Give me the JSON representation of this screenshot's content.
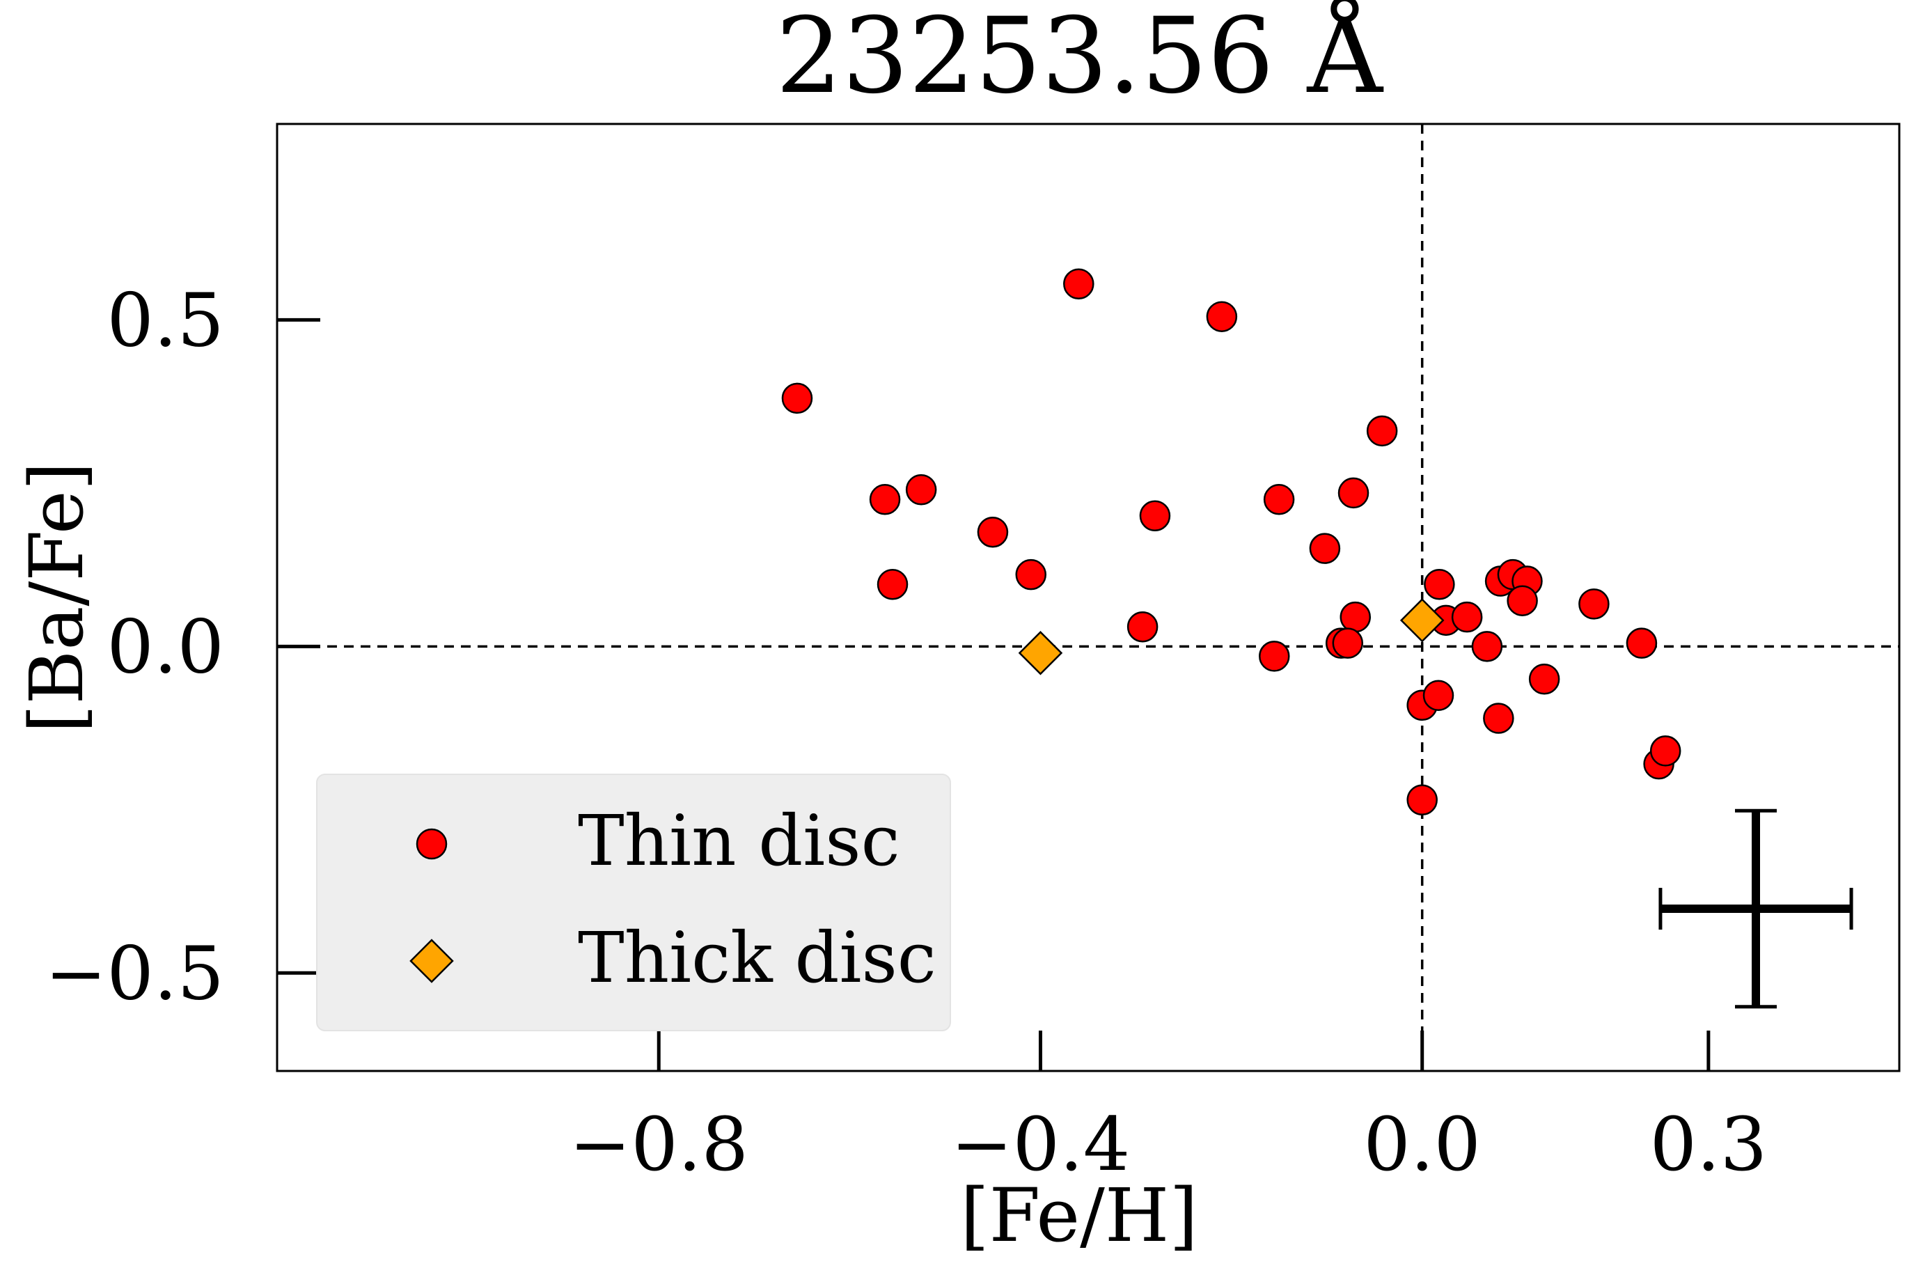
{
  "chart_data": {
    "type": "scatter",
    "title": "23253.56 Å",
    "xlabel": "[Fe/H]",
    "ylabel": "[Ba/Fe]",
    "xlim": [
      -1.2,
      0.5
    ],
    "ylim": [
      -0.65,
      0.8
    ],
    "xticks": [
      -0.8,
      -0.4,
      0.0,
      0.3
    ],
    "xtick_labels": [
      "−0.8",
      "−0.4",
      "0.0",
      "0.3"
    ],
    "yticks": [
      0.5,
      0.0,
      -0.5
    ],
    "ytick_labels": [
      "0.5",
      "0.0",
      "−0.5"
    ],
    "grid": false,
    "reference_lines": {
      "x": 0.0,
      "y": 0.0,
      "style": "dashed"
    },
    "legend_position": "lower-left",
    "series": [
      {
        "name": "Thin disc",
        "marker": "circle",
        "color": "#ff0000",
        "points": [
          [
            -0.655,
            0.38
          ],
          [
            -0.563,
            0.225
          ],
          [
            -0.525,
            0.24
          ],
          [
            -0.555,
            0.095
          ],
          [
            -0.45,
            0.175
          ],
          [
            -0.41,
            0.11
          ],
          [
            -0.36,
            0.555
          ],
          [
            -0.28,
            0.2
          ],
          [
            -0.293,
            0.03
          ],
          [
            -0.21,
            0.505
          ],
          [
            -0.15,
            0.225
          ],
          [
            -0.155,
            -0.015
          ],
          [
            -0.102,
            0.15
          ],
          [
            -0.072,
            0.235
          ],
          [
            -0.07,
            0.045
          ],
          [
            -0.085,
            0.005
          ],
          [
            -0.078,
            0.005
          ],
          [
            -0.042,
            0.33
          ],
          [
            0.018,
            0.095
          ],
          [
            0.025,
            0.04
          ],
          [
            0.047,
            0.045
          ],
          [
            0.068,
            0.0
          ],
          [
            0.082,
            0.1
          ],
          [
            0.095,
            0.11
          ],
          [
            0.11,
            0.1
          ],
          [
            0.105,
            0.07
          ],
          [
            0.18,
            0.065
          ],
          [
            0.23,
            0.005
          ],
          [
            0.0,
            -0.09
          ],
          [
            0.017,
            -0.075
          ],
          [
            0.08,
            -0.11
          ],
          [
            0.128,
            -0.05
          ],
          [
            0.0,
            -0.235
          ],
          [
            0.248,
            -0.18
          ],
          [
            0.255,
            -0.16
          ]
        ]
      },
      {
        "name": "Thick disc",
        "marker": "diamond",
        "color": "#ffa500",
        "points": [
          [
            -0.4,
            -0.01
          ],
          [
            0.0,
            0.04
          ]
        ]
      }
    ],
    "error_bar": {
      "x_error": 0.1,
      "y_error": 0.15
    }
  }
}
